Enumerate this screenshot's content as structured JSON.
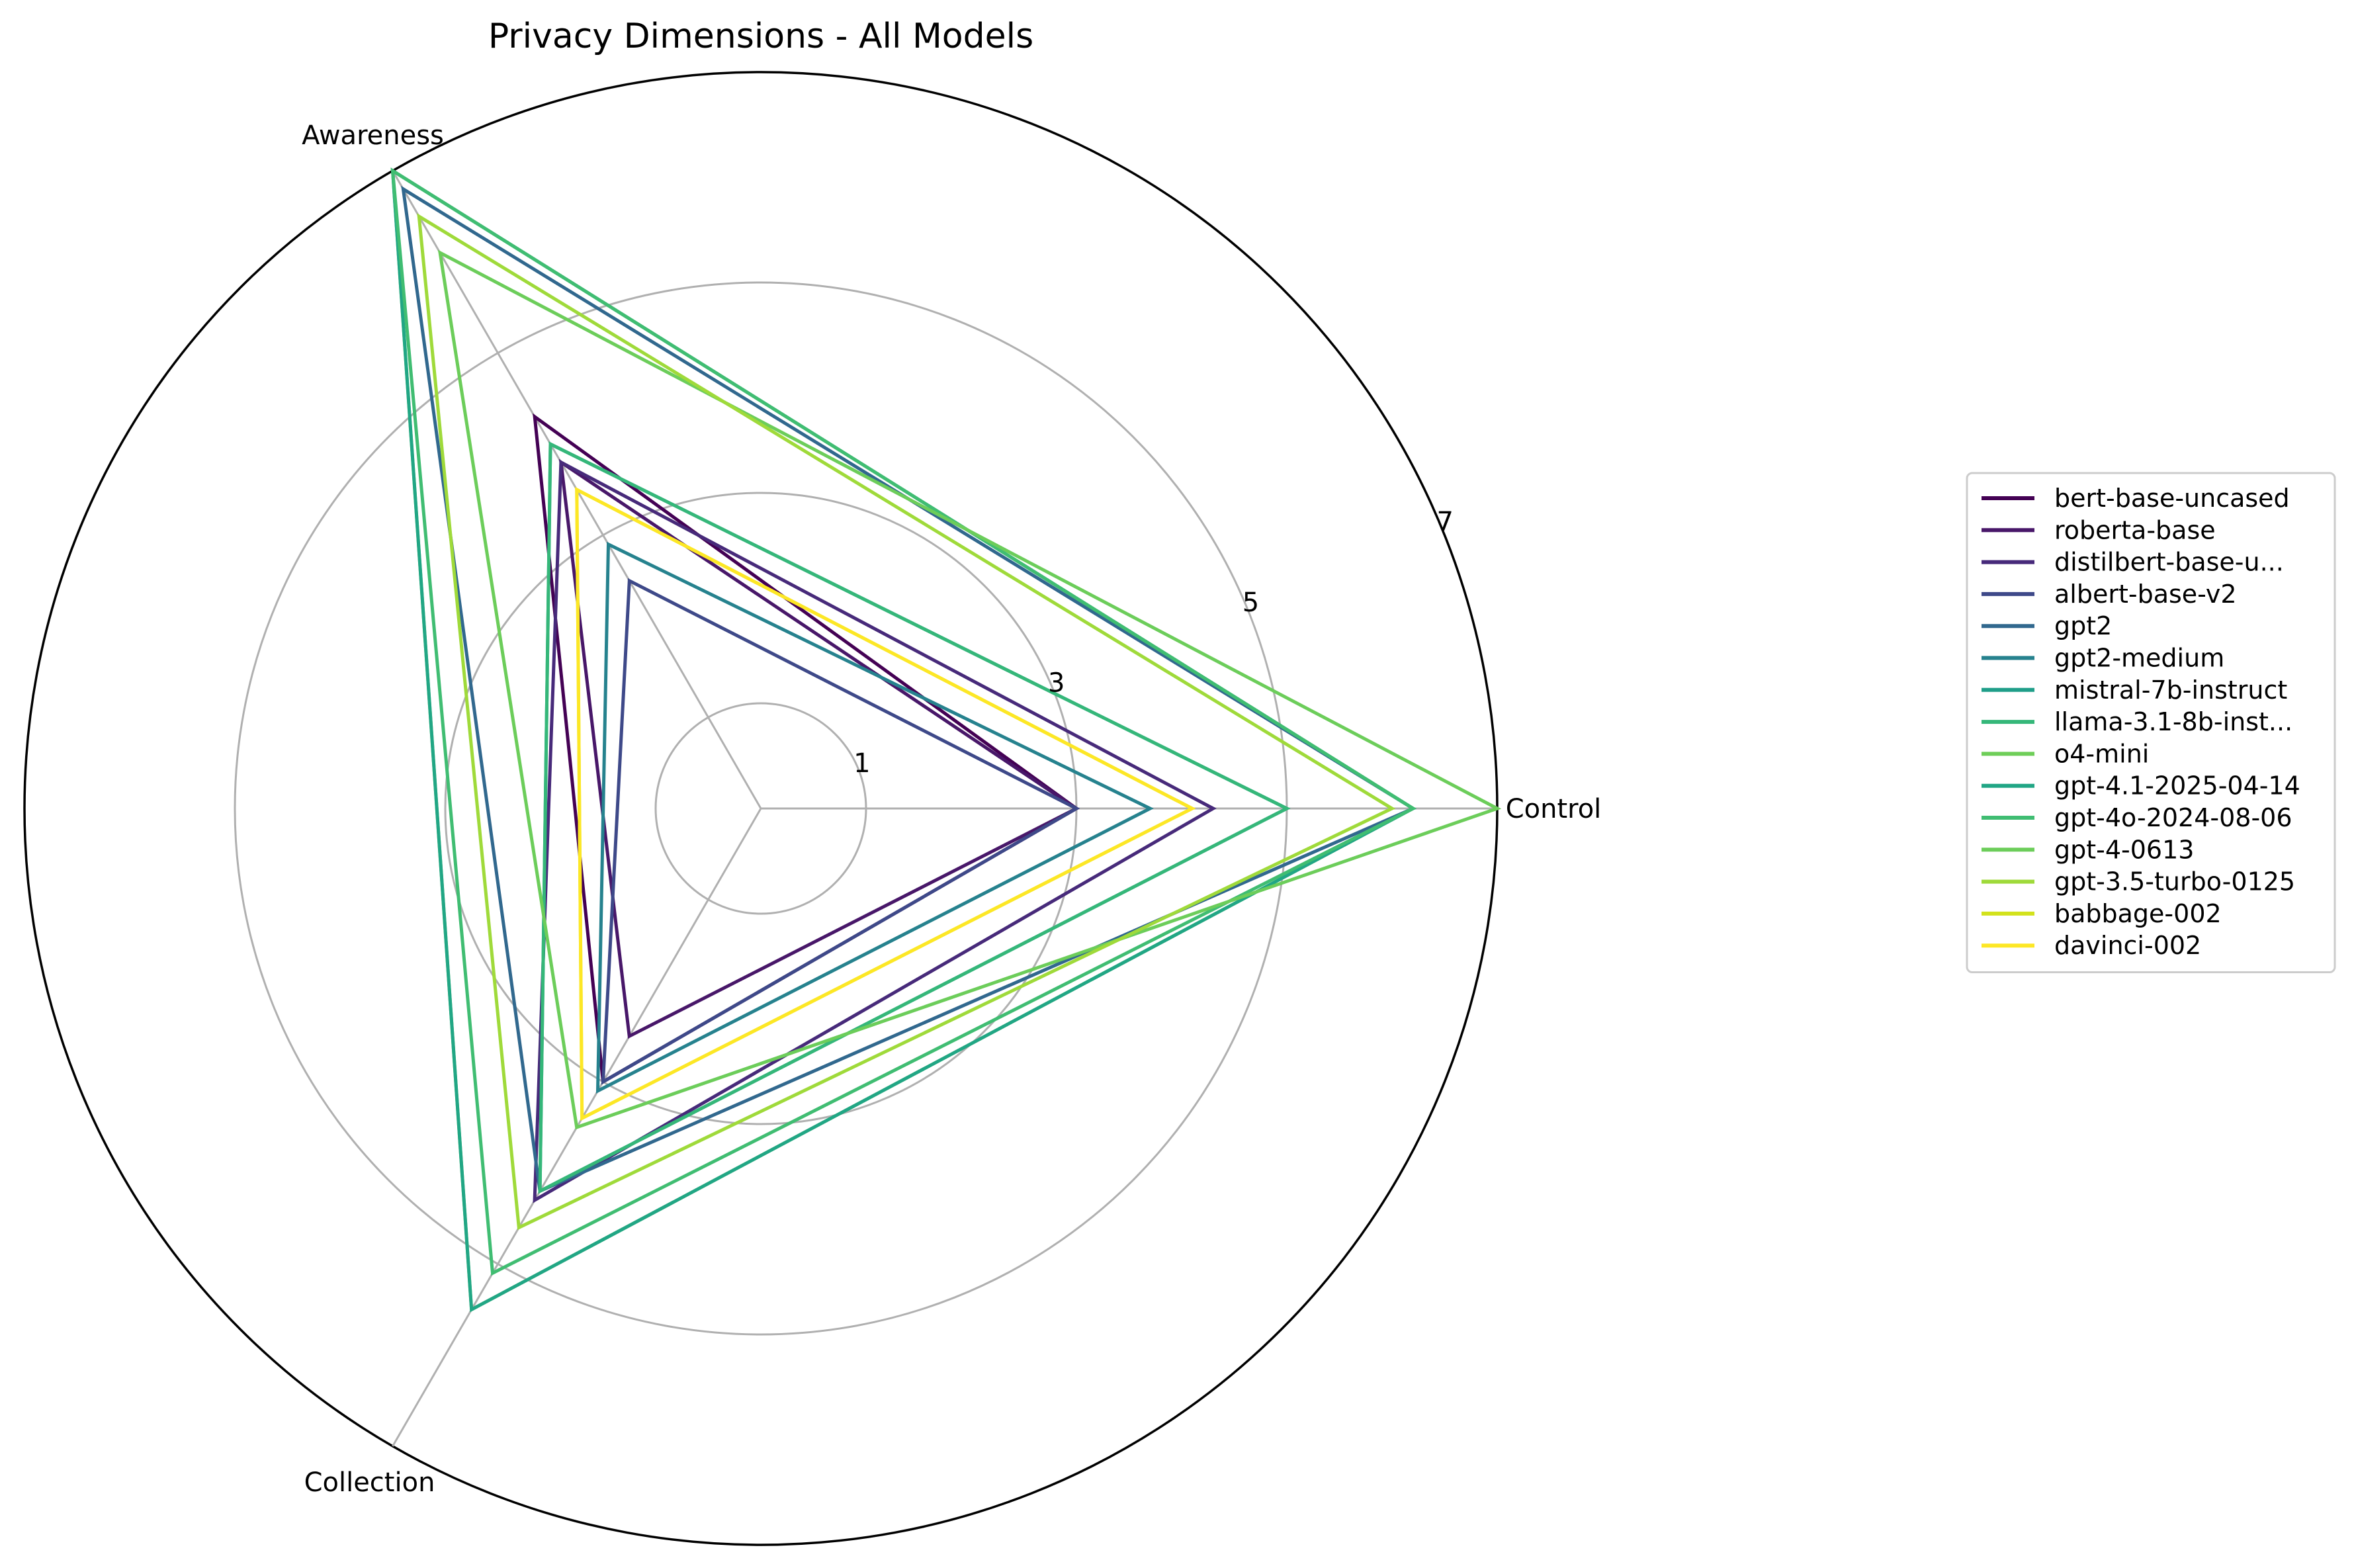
{
  "chart_data": {
    "type": "radar",
    "title": "Privacy Dimensions - All Models",
    "axes": [
      "Control",
      "Awareness",
      "Collection"
    ],
    "rlim": [
      0,
      7
    ],
    "rticks": [
      1,
      3,
      5,
      7
    ],
    "rtick_labels": [
      "1",
      "3",
      "5",
      "7"
    ],
    "grid": true,
    "legend_placement": "right",
    "series": [
      {
        "name": "bert-base-uncased",
        "color": "#440154",
        "values": [
          3.0,
          4.3,
          3.0
        ]
      },
      {
        "name": "roberta-base",
        "color": "#481769",
        "values": [
          3.0,
          3.8,
          2.5
        ]
      },
      {
        "name": "distilbert-base-u...",
        "color": "#472a7a",
        "values": [
          4.3,
          3.8,
          4.3
        ]
      },
      {
        "name": "albert-base-v2",
        "color": "#3e4989",
        "values": [
          3.0,
          2.5,
          3.0
        ]
      },
      {
        "name": "gpt2",
        "color": "#31688e",
        "values": [
          6.2,
          6.8,
          4.2
        ]
      },
      {
        "name": "gpt2-medium",
        "color": "#26828e",
        "values": [
          3.7,
          2.9,
          3.1
        ]
      },
      {
        "name": "mistral-7b-instruct",
        "color": "#1f9e89",
        "values": [
          5.0,
          4.0,
          4.2
        ]
      },
      {
        "name": "llama-3.1-8b-inst...",
        "color": "#35b779",
        "values": [
          5.0,
          4.0,
          4.2
        ]
      },
      {
        "name": "o4-mini",
        "color": "#6ece58",
        "values": [
          6.2,
          7.0,
          5.5
        ]
      },
      {
        "name": "gpt-4.1-2025-04-14",
        "color": "#21a685",
        "values": [
          6.2,
          7.0,
          5.5
        ]
      },
      {
        "name": "gpt-4o-2024-08-06",
        "color": "#40bd72",
        "values": [
          6.2,
          7.0,
          5.1
        ]
      },
      {
        "name": "gpt-4-0613",
        "color": "#6ccd5a",
        "values": [
          7.0,
          6.1,
          3.5
        ]
      },
      {
        "name": "gpt-3.5-turbo-0125",
        "color": "#9fda3a",
        "values": [
          6.0,
          6.5,
          4.6
        ]
      },
      {
        "name": "babbage-002",
        "color": "#d2e21b",
        "values": [
          4.1,
          3.5,
          3.4
        ]
      },
      {
        "name": "davinci-002",
        "color": "#fde725",
        "values": [
          4.1,
          3.5,
          3.4
        ]
      }
    ]
  }
}
